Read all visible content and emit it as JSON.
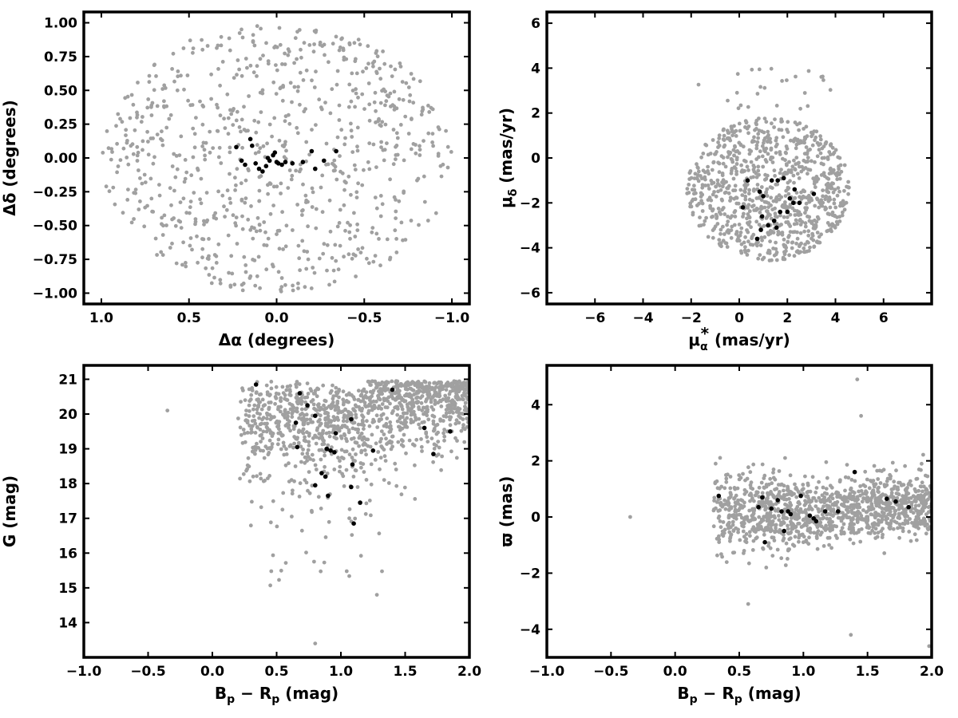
{
  "chart_data": [
    {
      "type": "scatter",
      "panel": "top-left",
      "xlabel": "Δα (degrees)",
      "ylabel": "Δδ (degrees)",
      "xlim": [
        1.1,
        -1.1
      ],
      "ylim": [
        -1.08,
        1.08
      ],
      "x_inverted": true,
      "xticks": [
        1.0,
        0.5,
        0.0,
        -0.5,
        -1.0
      ],
      "xtick_labels": [
        "1.0",
        "0.5",
        "0.0",
        "−0.5",
        "−1.0"
      ],
      "yticks": [
        1.0,
        0.75,
        0.5,
        0.25,
        0.0,
        -0.25,
        -0.5,
        -0.75,
        -1.0
      ],
      "ytick_labels": [
        "1.00",
        "0.75",
        "0.50",
        "0.25",
        "0.00",
        "−0.25",
        "−0.50",
        "−0.75",
        "−1.00"
      ],
      "grid": false,
      "field_colors": {
        "field": "#a0a0a0",
        "members": "#000000"
      },
      "field": {
        "distribution": "uniform disk",
        "radius_deg": 1.0,
        "approx_count": 800
      },
      "members": {
        "x": [
          0.23,
          0.2,
          0.15,
          0.14,
          0.12,
          0.1,
          0.08,
          0.06,
          0.04,
          0.02,
          0.01,
          -0.01,
          -0.03,
          -0.05,
          -0.09,
          -0.15,
          -0.2,
          -0.22,
          -0.27,
          -0.34,
          0.18,
          0.05,
          0.0
        ],
        "y": [
          0.08,
          -0.02,
          0.14,
          0.09,
          -0.04,
          -0.08,
          -0.1,
          -0.06,
          -0.02,
          0.02,
          0.04,
          -0.04,
          -0.05,
          -0.03,
          -0.04,
          -0.03,
          0.05,
          -0.08,
          -0.02,
          0.05,
          -0.05,
          0.0,
          -0.03
        ]
      }
    },
    {
      "type": "scatter",
      "panel": "top-right",
      "xlabel": "μα* (mas/yr)",
      "ylabel": "μδ (mas/yr)",
      "xlim": [
        -8,
        8
      ],
      "ylim": [
        -6.5,
        6.5
      ],
      "xticks": [
        -6,
        -4,
        -2,
        0,
        2,
        4,
        6
      ],
      "xtick_labels": [
        "−6",
        "−4",
        "−2",
        "0",
        "2",
        "4",
        "6"
      ],
      "yticks": [
        -6,
        -4,
        -2,
        0,
        2,
        4,
        6
      ],
      "ytick_labels": [
        "−6",
        "−4",
        "−2",
        "0",
        "2",
        "4",
        "6"
      ],
      "grid": false,
      "field_colors": {
        "field": "#a0a0a0",
        "members": "#000000"
      },
      "field": {
        "distribution": "elliptical blob",
        "center": [
          1.2,
          -1.4
        ],
        "semi_axes": [
          3.4,
          3.2
        ],
        "approx_count": 900
      },
      "members": {
        "x": [
          0.35,
          0.85,
          1.0,
          1.35,
          1.6,
          1.85,
          2.1,
          2.3,
          2.5,
          3.1,
          0.15,
          0.75,
          0.95,
          1.45,
          1.7,
          2.0,
          2.25,
          1.2,
          0.9,
          1.55
        ],
        "y": [
          -1.0,
          -1.5,
          -1.7,
          -1.0,
          -1.0,
          -0.9,
          -1.8,
          -1.4,
          -2.0,
          -1.6,
          -2.2,
          -3.6,
          -2.6,
          -2.8,
          -2.4,
          -2.4,
          -2.0,
          -3.0,
          -3.2,
          -3.1
        ]
      }
    },
    {
      "type": "scatter",
      "panel": "bottom-left",
      "xlabel": "Bp − Rp (mag)",
      "ylabel": "G (mag)",
      "xlim": [
        -1.0,
        2.0
      ],
      "ylim": [
        13.0,
        21.4
      ],
      "y_inverted_display": false,
      "xticks": [
        -1.0,
        -0.5,
        0.0,
        0.5,
        1.0,
        1.5,
        2.0
      ],
      "xtick_labels": [
        "−1.0",
        "−0.5",
        "0.0",
        "0.5",
        "1.0",
        "1.5",
        "2.0"
      ],
      "yticks": [
        14,
        15,
        16,
        17,
        18,
        19,
        20,
        21
      ],
      "ytick_labels": [
        "14",
        "15",
        "16",
        "17",
        "18",
        "19",
        "20",
        "21"
      ],
      "grid": false,
      "field_colors": {
        "field": "#a0a0a0",
        "members": "#000000"
      },
      "field": {
        "distribution": "colour-magnitude cloud",
        "bp_rp_range": [
          0.2,
          2.0
        ],
        "g_range": [
          18,
          21
        ],
        "approx_count": 1200
      },
      "members": {
        "x": [
          0.34,
          0.68,
          0.74,
          0.8,
          0.65,
          0.96,
          1.08,
          1.09,
          1.4,
          1.65,
          1.72,
          1.85,
          0.66,
          0.89,
          0.92,
          0.95,
          1.25,
          0.85,
          0.88,
          0.8,
          1.08,
          1.15,
          1.1,
          0.9
        ],
        "y": [
          20.85,
          20.6,
          20.25,
          19.95,
          19.75,
          19.45,
          19.85,
          18.55,
          20.7,
          19.6,
          18.85,
          19.5,
          19.05,
          19.0,
          18.95,
          18.9,
          18.95,
          18.3,
          18.2,
          17.95,
          17.9,
          17.45,
          16.85,
          17.65
        ]
      }
    },
    {
      "type": "scatter",
      "panel": "bottom-right",
      "xlabel": "Bp − Rp (mag)",
      "ylabel": "ϖ (mas)",
      "xlim": [
        -1.0,
        2.0
      ],
      "ylim": [
        -5.0,
        5.4
      ],
      "xticks": [
        -1.0,
        -0.5,
        0.0,
        0.5,
        1.0,
        1.5,
        2.0
      ],
      "xtick_labels": [
        "−1.0",
        "−0.5",
        "0.0",
        "0.5",
        "1.0",
        "1.5",
        "2.0"
      ],
      "yticks": [
        -4,
        -2,
        0,
        2,
        4
      ],
      "ytick_labels": [
        "−4",
        "−2",
        "0",
        "2",
        "4"
      ],
      "grid": false,
      "field_colors": {
        "field": "#a0a0a0",
        "members": "#000000"
      },
      "field": {
        "distribution": "horizontal band",
        "bp_rp_range": [
          0.3,
          2.0
        ],
        "parallax_center": 0.2,
        "approx_count": 1200
      },
      "members": {
        "x": [
          0.34,
          0.65,
          0.68,
          0.75,
          0.8,
          0.83,
          0.88,
          0.9,
          0.98,
          1.05,
          1.08,
          1.1,
          1.17,
          1.27,
          1.4,
          1.65,
          1.72,
          1.82,
          0.85,
          0.7
        ],
        "y": [
          0.75,
          0.35,
          0.7,
          0.3,
          0.6,
          0.2,
          0.2,
          0.1,
          0.75,
          0.05,
          -0.05,
          -0.15,
          0.2,
          0.2,
          1.6,
          0.65,
          0.55,
          0.35,
          -0.5,
          -0.9
        ]
      }
    }
  ]
}
